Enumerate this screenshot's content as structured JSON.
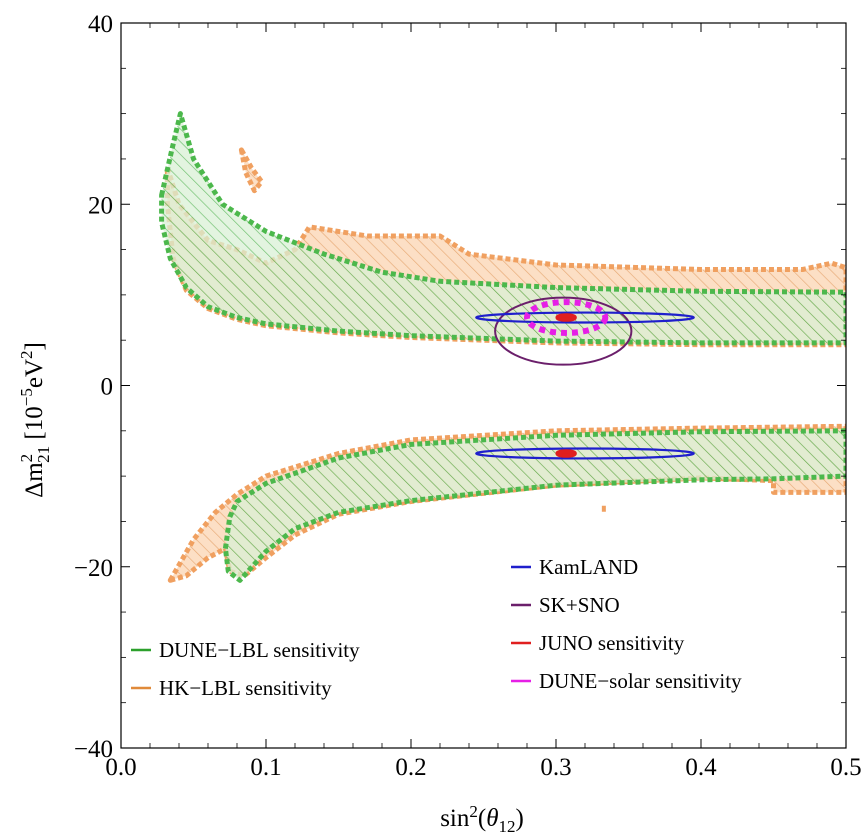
{
  "chart_data": {
    "type": "area",
    "xlabel": "sin²(θ₁₂)",
    "ylabel_parts": {
      "delta": "Δm",
      "sup": "2",
      "sub": "21",
      "unit_open": " [10",
      "exp": "−5",
      "unit_mid": "eV",
      "unit_sup": "2",
      "unit_close": "]"
    },
    "xlim": [
      0,
      0.5
    ],
    "ylim": [
      -40,
      40
    ],
    "x_ticks": [
      {
        "value": 0.0,
        "label": "0.0"
      },
      {
        "value": 0.1,
        "label": "0.1"
      },
      {
        "value": 0.2,
        "label": "0.2"
      },
      {
        "value": 0.3,
        "label": "0.3"
      },
      {
        "value": 0.4,
        "label": "0.4"
      },
      {
        "value": 0.5,
        "label": "0.5"
      }
    ],
    "y_ticks": [
      {
        "value": 40,
        "label": "40"
      },
      {
        "value": 20,
        "label": "20"
      },
      {
        "value": 0,
        "label": "0"
      },
      {
        "value": -20,
        "label": "−20"
      },
      {
        "value": -40,
        "label": "−40"
      }
    ],
    "legend_left": [
      {
        "name": "DUNE−LBL sensitivity",
        "color": "#2ca02c"
      },
      {
        "name": "HK−LBL sensitivity",
        "color": "#e08a3a"
      }
    ],
    "legend_right": [
      {
        "name": "KamLAND",
        "color": "#1f1fcc"
      },
      {
        "name": "SK+SNO",
        "color": "#6b1f6b"
      },
      {
        "name": "JUNO sensitivity",
        "color": "#e01f1f"
      },
      {
        "name": "DUNE−solar sensitivity",
        "color": "#e61fe6"
      }
    ],
    "regions": [
      {
        "name": "HK−LBL sensitivity",
        "part": "upper",
        "color": "#f0a060",
        "outline": [
          [
            0.032,
            24
          ],
          [
            0.04,
            20
          ],
          [
            0.06,
            16
          ],
          [
            0.08,
            15
          ],
          [
            0.1,
            13.5
          ],
          [
            0.12,
            15
          ],
          [
            0.13,
            17.5
          ],
          [
            0.17,
            16.5
          ],
          [
            0.22,
            16.5
          ],
          [
            0.24,
            14.5
          ],
          [
            0.3,
            13.3
          ],
          [
            0.4,
            12.8
          ],
          [
            0.47,
            12.8
          ],
          [
            0.49,
            13.5
          ],
          [
            0.5,
            13
          ],
          [
            0.5,
            4.5
          ],
          [
            0.4,
            4.5
          ],
          [
            0.3,
            4.7
          ],
          [
            0.2,
            5.3
          ],
          [
            0.15,
            5.8
          ],
          [
            0.1,
            6.6
          ],
          [
            0.08,
            7.3
          ],
          [
            0.06,
            8.5
          ],
          [
            0.045,
            10.5
          ],
          [
            0.036,
            14
          ],
          [
            0.032,
            20
          ]
        ]
      },
      {
        "name": "HK−LBL sensitivity",
        "part": "island",
        "color": "#f0a060",
        "outline": [
          [
            0.083,
            26
          ],
          [
            0.09,
            24
          ],
          [
            0.097,
            22.5
          ],
          [
            0.092,
            21.5
          ],
          [
            0.086,
            23.5
          ]
        ]
      },
      {
        "name": "DUNE−LBL sensitivity",
        "part": "upper",
        "color": "#2ca02c",
        "outline": [
          [
            0.028,
            21
          ],
          [
            0.035,
            26
          ],
          [
            0.041,
            30
          ],
          [
            0.05,
            25
          ],
          [
            0.07,
            20
          ],
          [
            0.1,
            17
          ],
          [
            0.14,
            14.5
          ],
          [
            0.18,
            12.5
          ],
          [
            0.22,
            11.5
          ],
          [
            0.3,
            10.8
          ],
          [
            0.4,
            10.4
          ],
          [
            0.5,
            10.3
          ],
          [
            0.5,
            4.7
          ],
          [
            0.4,
            4.7
          ],
          [
            0.3,
            4.9
          ],
          [
            0.2,
            5.5
          ],
          [
            0.15,
            6
          ],
          [
            0.1,
            6.8
          ],
          [
            0.08,
            7.5
          ],
          [
            0.06,
            8.7
          ],
          [
            0.045,
            10.8
          ],
          [
            0.034,
            14
          ],
          [
            0.028,
            18
          ]
        ]
      },
      {
        "name": "HK−LBL sensitivity",
        "part": "lower",
        "color": "#f0a060",
        "outline": [
          [
            0.034,
            -21.5
          ],
          [
            0.05,
            -17
          ],
          [
            0.065,
            -14
          ],
          [
            0.08,
            -12
          ],
          [
            0.1,
            -10
          ],
          [
            0.15,
            -7.5
          ],
          [
            0.2,
            -6
          ],
          [
            0.3,
            -5
          ],
          [
            0.4,
            -4.7
          ],
          [
            0.5,
            -4.5
          ],
          [
            0.5,
            -11.8
          ],
          [
            0.45,
            -11.8
          ],
          [
            0.45,
            -10.5
          ],
          [
            0.4,
            -10.2
          ],
          [
            0.3,
            -11
          ],
          [
            0.2,
            -12.8
          ],
          [
            0.15,
            -14.2
          ],
          [
            0.12,
            -16.5
          ],
          [
            0.1,
            -19
          ],
          [
            0.085,
            -21
          ],
          [
            0.075,
            -20.5
          ],
          [
            0.072,
            -18
          ],
          [
            0.06,
            -19
          ],
          [
            0.045,
            -21
          ]
        ]
      },
      {
        "name": "DUNE−LBL sensitivity",
        "part": "lower",
        "color": "#2ca02c",
        "outline": [
          [
            0.072,
            -18
          ],
          [
            0.075,
            -14.5
          ],
          [
            0.08,
            -12.8
          ],
          [
            0.1,
            -10.8
          ],
          [
            0.15,
            -8
          ],
          [
            0.2,
            -6.5
          ],
          [
            0.3,
            -5.5
          ],
          [
            0.4,
            -5.1
          ],
          [
            0.5,
            -5
          ],
          [
            0.5,
            -10
          ],
          [
            0.45,
            -10.3
          ],
          [
            0.4,
            -10.4
          ],
          [
            0.3,
            -11
          ],
          [
            0.2,
            -12.7
          ],
          [
            0.15,
            -14
          ],
          [
            0.12,
            -15.8
          ],
          [
            0.1,
            -18.3
          ],
          [
            0.082,
            -21.5
          ],
          [
            0.074,
            -20.5
          ]
        ]
      }
    ],
    "contours": [
      {
        "name": "SK+SNO",
        "color": "#6b1f6b",
        "center": [
          0.305,
          6.0
        ],
        "rx": 0.047,
        "ry": 3.7,
        "width": 2
      },
      {
        "name": "KamLAND",
        "color": "#1f1fcc",
        "center": [
          0.32,
          7.5
        ],
        "rx": 0.075,
        "ry": 0.55,
        "width": 2.2
      },
      {
        "name": "KamLAND",
        "color": "#1f1fcc",
        "center": [
          0.32,
          -7.5
        ],
        "rx": 0.075,
        "ry": 0.55,
        "width": 2.2
      },
      {
        "name": "DUNE−solar sensitivity",
        "color": "#e61fe6",
        "center": [
          0.307,
          7.5
        ],
        "rx": 0.027,
        "ry": 1.7,
        "width": 6,
        "dash": "6 5"
      },
      {
        "name": "JUNO sensitivity",
        "color": "#e01f1f",
        "center": [
          0.307,
          7.5
        ],
        "rx": 0.006,
        "ry": 0.25,
        "width": 4,
        "fill": true
      },
      {
        "name": "JUNO sensitivity",
        "color": "#e01f1f",
        "center": [
          0.307,
          -7.5
        ],
        "rx": 0.006,
        "ry": 0.25,
        "width": 4,
        "fill": true
      }
    ],
    "speck": {
      "color": "#f0a060",
      "x": 0.333,
      "y": -13.6
    }
  }
}
